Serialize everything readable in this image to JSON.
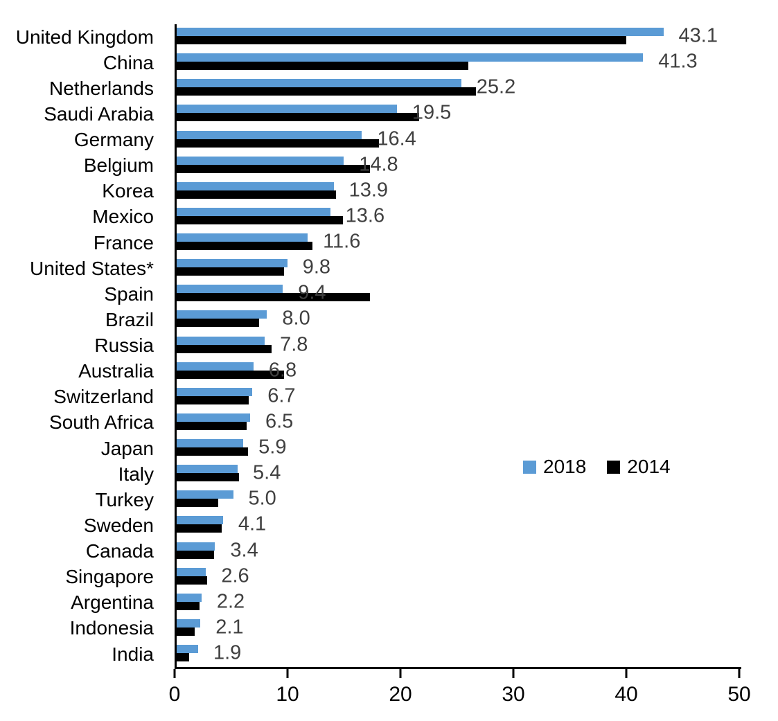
{
  "chart_data": {
    "type": "bar",
    "orientation": "horizontal",
    "title": "",
    "xlabel": "",
    "ylabel": "",
    "xlim": [
      0,
      50
    ],
    "x_tick_labels": [
      "0",
      "10",
      "20",
      "30",
      "40",
      "50"
    ],
    "x_tick_values": [
      0,
      10,
      20,
      30,
      40,
      50
    ],
    "grid": false,
    "legend_position": "middle-right",
    "categories": [
      "United Kingdom",
      "China",
      "Netherlands",
      "Saudi Arabia",
      "Germany",
      "Belgium",
      "Korea",
      "Mexico",
      "France",
      "United States*",
      "Spain",
      "Brazil",
      "Russia",
      "Australia",
      "Switzerland",
      "South Africa",
      "Japan",
      "Italy",
      "Turkey",
      "Sweden",
      "Canada",
      "Singapore",
      "Argentina",
      "Indonesia",
      "India"
    ],
    "series": [
      {
        "name": "2018",
        "color": "#5B9BD5",
        "values": [
          43.1,
          41.3,
          25.2,
          19.5,
          16.4,
          14.8,
          13.9,
          13.6,
          11.6,
          9.8,
          9.4,
          8.0,
          7.8,
          6.8,
          6.7,
          6.5,
          5.9,
          5.4,
          5.0,
          4.1,
          3.4,
          2.6,
          2.2,
          2.1,
          1.9
        ],
        "data_labels": [
          "43.1",
          "41.3",
          "25.2",
          "19.5",
          "16.4",
          "14.8",
          "13.9",
          "13.6",
          "11.6",
          "9.8",
          "9.4",
          "8.0",
          "7.8",
          "6.8",
          "6.7",
          "6.5",
          "5.9",
          "5.4",
          "5.0",
          "4.1",
          "3.4",
          "2.6",
          "2.2",
          "2.1",
          "1.9"
        ]
      },
      {
        "name": "2014",
        "color": "#000000",
        "values": [
          39.8,
          25.8,
          26.5,
          21.5,
          17.9,
          17.1,
          14.1,
          14.7,
          12.0,
          9.5,
          17.1,
          7.3,
          8.4,
          9.5,
          6.4,
          6.2,
          6.3,
          5.5,
          3.7,
          4.0,
          3.3,
          2.7,
          2.0,
          1.6,
          1.1
        ]
      }
    ],
    "legend": [
      {
        "label": "2018",
        "color": "#5B9BD5"
      },
      {
        "label": "2014",
        "color": "#000000"
      }
    ]
  }
}
